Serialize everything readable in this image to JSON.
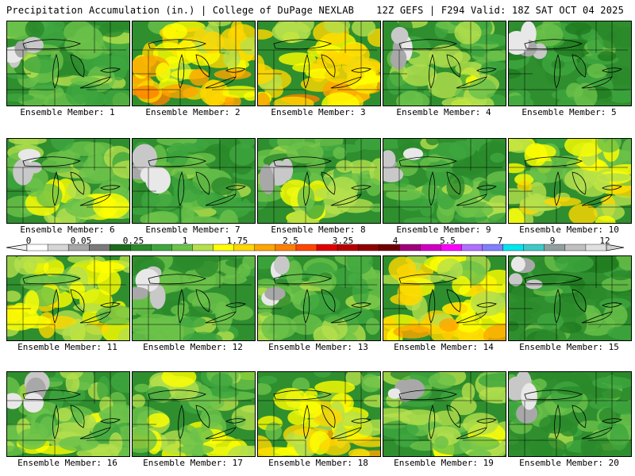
{
  "header": {
    "left": "Precipitation Accumulation (in.) | College of DuPage NEXLAB",
    "right": "12Z GEFS | F294 Valid: 18Z SAT OCT 04 2025"
  },
  "colorbar": {
    "tick_labels": [
      "0",
      "0.05",
      "0.25",
      "1",
      "1.75",
      "2.5",
      "3.25",
      "4",
      "5.5",
      "7",
      "9",
      "12"
    ],
    "colors": [
      "#ffffff",
      "#d6d6d6",
      "#a8a8a8",
      "#7a7a7a",
      "#1e6b1e",
      "#2b8a2b",
      "#3fa63f",
      "#6cc24a",
      "#b5e04c",
      "#ffff00",
      "#ffd700",
      "#ffa500",
      "#ff7f00",
      "#ff4500",
      "#e00000",
      "#b80000",
      "#900000",
      "#700000",
      "#a0007a",
      "#d000c0",
      "#ff00ff",
      "#b070ff",
      "#7f7fff",
      "#00e5ee",
      "#40c8c8",
      "#90a0a0",
      "#c0c0c0",
      "#e0e0e0"
    ]
  },
  "members": [
    {
      "label": "Ensemble Member: 1",
      "wetness": 0.35
    },
    {
      "label": "Ensemble Member: 2",
      "wetness": 0.75
    },
    {
      "label": "Ensemble Member: 3",
      "wetness": 0.7
    },
    {
      "label": "Ensemble Member: 4",
      "wetness": 0.4
    },
    {
      "label": "Ensemble Member: 5",
      "wetness": 0.2
    },
    {
      "label": "Ensemble Member: 6",
      "wetness": 0.45
    },
    {
      "label": "Ensemble Member: 7",
      "wetness": 0.3
    },
    {
      "label": "Ensemble Member: 8",
      "wetness": 0.4
    },
    {
      "label": "Ensemble Member: 9",
      "wetness": 0.35
    },
    {
      "label": "Ensemble Member: 10",
      "wetness": 0.6
    },
    {
      "label": "Ensemble Member: 11",
      "wetness": 0.6
    },
    {
      "label": "Ensemble Member: 12",
      "wetness": 0.3
    },
    {
      "label": "Ensemble Member: 13",
      "wetness": 0.35
    },
    {
      "label": "Ensemble Member: 14",
      "wetness": 0.7
    },
    {
      "label": "Ensemble Member: 15",
      "wetness": 0.2
    },
    {
      "label": "Ensemble Member: 16",
      "wetness": 0.45
    },
    {
      "label": "Ensemble Member: 17",
      "wetness": 0.5
    },
    {
      "label": "Ensemble Member: 18",
      "wetness": 0.6
    },
    {
      "label": "Ensemble Member: 19",
      "wetness": 0.4
    },
    {
      "label": "Ensemble Member: 20",
      "wetness": 0.3
    }
  ]
}
